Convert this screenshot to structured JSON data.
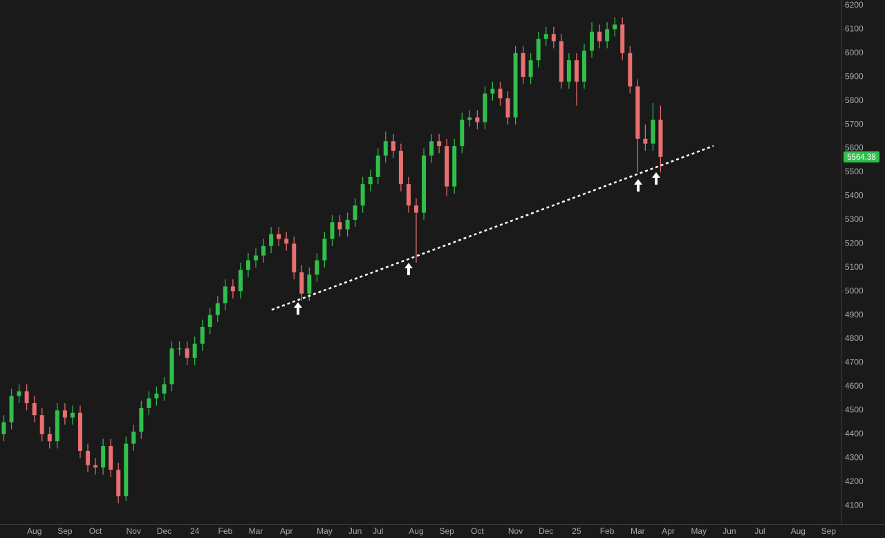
{
  "chart_data": {
    "type": "candlestick",
    "categories": [
      null,
      null,
      null,
      null,
      "Aug",
      null,
      null,
      null,
      "Sep",
      null,
      null,
      null,
      "Oct",
      null,
      null,
      null,
      null,
      "Nov",
      null,
      null,
      null,
      "Dec",
      null,
      null,
      null,
      "24",
      null,
      null,
      null,
      "Feb",
      null,
      null,
      null,
      "Mar",
      null,
      null,
      null,
      "Apr",
      null,
      null,
      null,
      null,
      "May",
      null,
      null,
      null,
      "Jun",
      null,
      null,
      "Jul",
      null,
      null,
      null,
      null,
      "Aug",
      null,
      null,
      null,
      "Sep",
      null,
      null,
      null,
      "Oct",
      null,
      null,
      null,
      null,
      "Nov",
      null,
      null,
      null,
      "Dec",
      null,
      null,
      null,
      "25",
      null,
      null,
      null,
      "Feb",
      null,
      null,
      null,
      "Mar",
      null,
      null,
      null,
      "Apr",
      null,
      null,
      null,
      "May",
      null,
      null,
      null,
      "Jun",
      null,
      null,
      null,
      "Jul",
      null,
      null,
      null,
      null,
      "Aug",
      null,
      null,
      null,
      "Sep",
      null
    ],
    "open": [
      4400,
      4450,
      4560,
      4580,
      4530,
      4480,
      4400,
      4370,
      4500,
      4470,
      4490,
      4330,
      4270,
      4260,
      4350,
      4250,
      4140,
      4360,
      4410,
      4510,
      4550,
      4570,
      4610,
      4760,
      4760,
      4720,
      4780,
      4850,
      4900,
      4950,
      5020,
      5000,
      5090,
      5130,
      5150,
      5190,
      5240,
      5220,
      5200,
      5080,
      4990,
      5070,
      5130,
      5220,
      5290,
      5260,
      5300,
      5360,
      5450,
      5480,
      5570,
      5630,
      5590,
      5450,
      5360,
      5330,
      5570,
      5630,
      5610,
      5440,
      5610,
      5720,
      5730,
      5710,
      5830,
      5850,
      5810,
      5730,
      6000,
      5900,
      5970,
      6060,
      6080,
      6050,
      5880,
      5970,
      5880,
      6010,
      6090,
      6050,
      6100,
      6120,
      6000,
      5860,
      5640,
      5620,
      5720,
      null,
      null,
      null,
      null,
      null,
      null,
      null,
      null,
      null,
      null,
      null,
      null,
      null,
      null,
      null,
      null,
      null,
      null,
      null,
      null,
      null,
      null,
      null
    ],
    "high": [
      4480,
      4590,
      4610,
      4610,
      4560,
      4510,
      4430,
      4530,
      4530,
      4520,
      4520,
      4360,
      4300,
      4380,
      4380,
      4280,
      4390,
      4440,
      4540,
      4580,
      4600,
      4640,
      4790,
      4790,
      4790,
      4810,
      4880,
      4930,
      4980,
      5050,
      5050,
      5120,
      5160,
      5180,
      5220,
      5270,
      5270,
      5250,
      5230,
      5110,
      5100,
      5160,
      5250,
      5320,
      5320,
      5330,
      5390,
      5480,
      5510,
      5600,
      5670,
      5660,
      5620,
      5480,
      5390,
      5600,
      5660,
      5660,
      5640,
      5640,
      5750,
      5760,
      5760,
      5860,
      5880,
      5880,
      5840,
      6030,
      6030,
      6000,
      6090,
      6110,
      6110,
      6080,
      6000,
      6000,
      6040,
      6130,
      6120,
      6130,
      6150,
      6150,
      6030,
      5890,
      5700,
      5790,
      5780,
      null,
      null,
      null,
      null,
      null,
      null,
      null,
      null,
      null,
      null,
      null,
      null,
      null,
      null,
      null,
      null,
      null,
      null,
      null,
      null,
      null,
      null,
      null
    ],
    "low": [
      4370,
      4420,
      4530,
      4500,
      4450,
      4370,
      4340,
      4340,
      4440,
      4440,
      4300,
      4240,
      4230,
      4230,
      4220,
      4110,
      4120,
      4330,
      4380,
      4480,
      4520,
      4540,
      4580,
      4730,
      4690,
      4690,
      4750,
      4820,
      4870,
      4920,
      4970,
      4970,
      5060,
      5100,
      5120,
      5160,
      5190,
      5170,
      5050,
      4960,
      4960,
      5040,
      5100,
      5190,
      5230,
      5230,
      5270,
      5330,
      5420,
      5450,
      5540,
      5560,
      5420,
      5330,
      5120,
      5300,
      5540,
      5580,
      5400,
      5410,
      5580,
      5690,
      5680,
      5680,
      5800,
      5780,
      5700,
      5700,
      5870,
      5870,
      5940,
      6030,
      6020,
      5850,
      5850,
      5780,
      5850,
      5980,
      6020,
      6020,
      6070,
      5970,
      5830,
      5500,
      5590,
      5590,
      5500,
      null,
      null,
      null,
      null,
      null,
      null,
      null,
      null,
      null,
      null,
      null,
      null,
      null,
      null,
      null,
      null,
      null,
      null,
      null,
      null,
      null,
      null,
      null
    ],
    "close": [
      4450,
      4560,
      4580,
      4530,
      4480,
      4400,
      4370,
      4500,
      4470,
      4490,
      4330,
      4270,
      4260,
      4350,
      4250,
      4140,
      4360,
      4410,
      4510,
      4550,
      4570,
      4610,
      4760,
      4760,
      4720,
      4780,
      4850,
      4900,
      4950,
      5020,
      5000,
      5090,
      5130,
      5150,
      5190,
      5240,
      5220,
      5200,
      5080,
      4990,
      5070,
      5130,
      5220,
      5290,
      5260,
      5300,
      5360,
      5450,
      5480,
      5570,
      5630,
      5590,
      5450,
      5360,
      5330,
      5570,
      5630,
      5610,
      5440,
      5610,
      5720,
      5730,
      5710,
      5830,
      5850,
      5810,
      5730,
      6000,
      5900,
      5970,
      6060,
      6080,
      6050,
      5880,
      5970,
      5880,
      6010,
      6090,
      6050,
      6100,
      6120,
      6000,
      5860,
      5640,
      5620,
      5720,
      5564.38,
      null,
      null,
      null,
      null,
      null,
      null,
      null,
      null,
      null,
      null,
      null,
      null,
      null,
      null,
      null,
      null,
      null,
      null,
      null,
      null,
      null,
      null,
      null
    ],
    "up_color": "#2fbf4a",
    "down_color": "#e87070",
    "ylim": [
      4022,
      6223
    ],
    "yticks": [
      4100,
      4200,
      4300,
      4400,
      4500,
      4600,
      4700,
      4800,
      4900,
      5000,
      5100,
      5200,
      5300,
      5400,
      5500,
      5600,
      5700,
      5800,
      5900,
      6000,
      6100,
      6200
    ]
  }
}
